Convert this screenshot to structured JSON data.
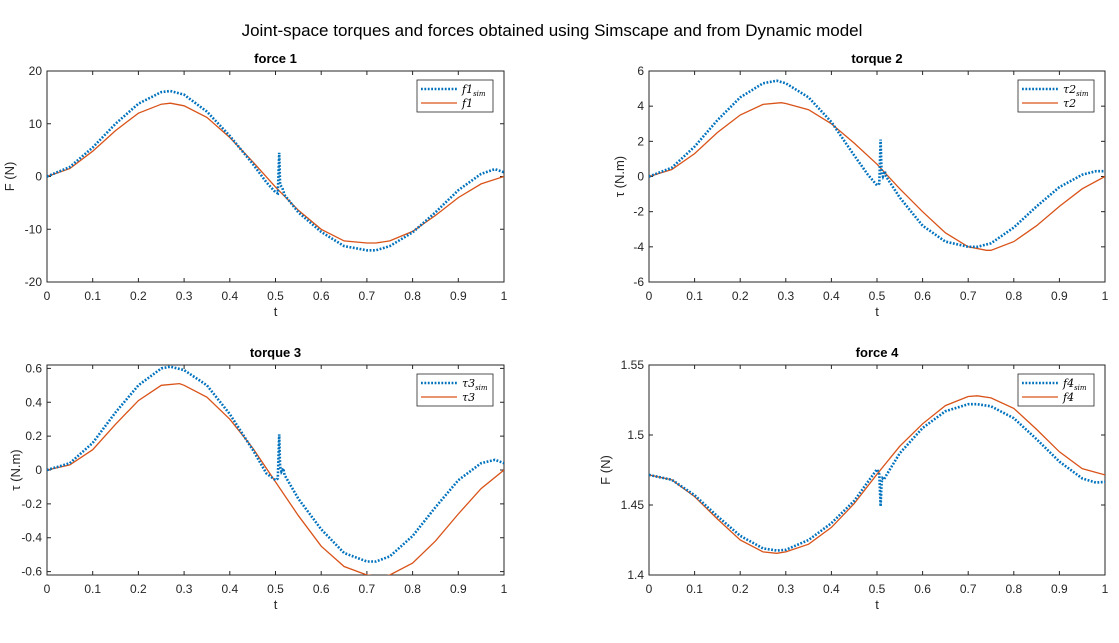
{
  "figure_title": "Joint-space torques and forces obtained using Simscape and from Dynamic model",
  "colors": {
    "sim": "#0072BD",
    "model": "#D95319",
    "axes": "#262626"
  },
  "chart_data": [
    {
      "type": "line",
      "title": "force 1",
      "xlabel": "t",
      "ylabel": "F (N)",
      "xlim": [
        0,
        1
      ],
      "ylim": [
        -20,
        20
      ],
      "xticks": [
        "0",
        "0.1",
        "0.2",
        "0.3",
        "0.4",
        "0.5",
        "0.6",
        "0.7",
        "0.8",
        "0.9",
        "1"
      ],
      "yticks": [
        "-20",
        "-10",
        "0",
        "10",
        "20"
      ],
      "legend": "top-right",
      "grid": false,
      "series": [
        {
          "name": "f1",
          "name_sub": "sim",
          "style": "dotted",
          "x": [
            0,
            0.05,
            0.1,
            0.15,
            0.2,
            0.25,
            0.27,
            0.3,
            0.35,
            0.4,
            0.45,
            0.48,
            0.5,
            0.505,
            0.508,
            0.51,
            0.512,
            0.515,
            0.52,
            0.55,
            0.6,
            0.65,
            0.7,
            0.72,
            0.75,
            0.8,
            0.85,
            0.9,
            0.95,
            0.98,
            1
          ],
          "values": [
            0,
            1.8,
            5.5,
            10,
            13.8,
            16,
            16.2,
            15.5,
            12.3,
            7.7,
            2.4,
            -1.1,
            -3,
            -3.2,
            4.5,
            -1.5,
            -1.8,
            -2.2,
            -3.5,
            -6.8,
            -10.5,
            -13.2,
            -14,
            -14,
            -13.2,
            -10.6,
            -6.8,
            -2.6,
            0.5,
            1.4,
            0.8
          ]
        },
        {
          "name": "f1",
          "name_sub": "",
          "style": "solid",
          "x": [
            0,
            0.05,
            0.1,
            0.15,
            0.2,
            0.25,
            0.27,
            0.3,
            0.35,
            0.4,
            0.45,
            0.5,
            0.55,
            0.6,
            0.65,
            0.7,
            0.72,
            0.75,
            0.8,
            0.85,
            0.9,
            0.95,
            1
          ],
          "values": [
            0,
            1.5,
            4.8,
            8.7,
            12,
            13.7,
            13.9,
            13.4,
            11.2,
            7.4,
            2.8,
            -2,
            -6.4,
            -10,
            -12.2,
            -12.6,
            -12.6,
            -12.2,
            -10.4,
            -7.4,
            -4,
            -1.4,
            0
          ]
        }
      ]
    },
    {
      "type": "line",
      "title": "torque 2",
      "xlabel": "t",
      "ylabel": "τ (N.m)",
      "xlim": [
        0,
        1
      ],
      "ylim": [
        -6,
        6
      ],
      "xticks": [
        "0",
        "0.1",
        "0.2",
        "0.3",
        "0.4",
        "0.5",
        "0.6",
        "0.7",
        "0.8",
        "0.9",
        "1"
      ],
      "yticks": [
        "-6",
        "-4",
        "-2",
        "0",
        "2",
        "4",
        "6"
      ],
      "legend": "top-right",
      "grid": false,
      "series": [
        {
          "name": "τ2",
          "name_sub": "sim",
          "style": "dotted",
          "x": [
            0,
            0.05,
            0.1,
            0.15,
            0.2,
            0.25,
            0.28,
            0.3,
            0.35,
            0.4,
            0.45,
            0.48,
            0.5,
            0.505,
            0.508,
            0.51,
            0.513,
            0.517,
            0.52,
            0.55,
            0.6,
            0.65,
            0.7,
            0.72,
            0.75,
            0.8,
            0.85,
            0.9,
            0.95,
            0.98,
            1
          ],
          "values": [
            0,
            0.5,
            1.7,
            3.2,
            4.5,
            5.3,
            5.45,
            5.3,
            4.5,
            3.1,
            1.2,
            0.1,
            -0.5,
            -0.4,
            2.1,
            0.2,
            0,
            0.3,
            0,
            -1.2,
            -2.8,
            -3.7,
            -4,
            -4,
            -3.8,
            -2.9,
            -1.7,
            -0.6,
            0.1,
            0.3,
            0.3
          ]
        },
        {
          "name": "τ2",
          "name_sub": "",
          "style": "solid",
          "x": [
            0,
            0.05,
            0.1,
            0.15,
            0.2,
            0.25,
            0.29,
            0.3,
            0.35,
            0.4,
            0.45,
            0.5,
            0.55,
            0.6,
            0.65,
            0.7,
            0.74,
            0.75,
            0.8,
            0.85,
            0.9,
            0.95,
            1
          ],
          "values": [
            0,
            0.4,
            1.3,
            2.5,
            3.5,
            4.1,
            4.2,
            4.15,
            3.8,
            3,
            1.9,
            0.7,
            -0.7,
            -2,
            -3.2,
            -4,
            -4.2,
            -4.2,
            -3.7,
            -2.8,
            -1.7,
            -0.7,
            0
          ]
        }
      ]
    },
    {
      "type": "line",
      "title": "torque 3",
      "xlabel": "t",
      "ylabel": "τ (N.m)",
      "xlim": [
        0,
        1
      ],
      "ylim": [
        -0.62,
        0.62
      ],
      "xticks": [
        "0",
        "0.1",
        "0.2",
        "0.3",
        "0.4",
        "0.5",
        "0.6",
        "0.7",
        "0.8",
        "0.9",
        "1"
      ],
      "yticks": [
        "-0.6",
        "-0.4",
        "-0.2",
        "0",
        "0.2",
        "0.4",
        "0.6"
      ],
      "legend": "top-right",
      "grid": false,
      "series": [
        {
          "name": "τ3",
          "name_sub": "sim",
          "style": "dotted",
          "x": [
            0,
            0.05,
            0.1,
            0.15,
            0.2,
            0.25,
            0.27,
            0.3,
            0.35,
            0.4,
            0.45,
            0.48,
            0.5,
            0.505,
            0.508,
            0.51,
            0.513,
            0.517,
            0.52,
            0.55,
            0.6,
            0.65,
            0.7,
            0.72,
            0.75,
            0.8,
            0.85,
            0.9,
            0.95,
            0.98,
            1
          ],
          "values": [
            0,
            0.04,
            0.16,
            0.34,
            0.5,
            0.6,
            0.61,
            0.59,
            0.5,
            0.33,
            0.12,
            -0.02,
            -0.06,
            -0.05,
            0.21,
            0.02,
            -0.01,
            0.01,
            -0.03,
            -0.17,
            -0.35,
            -0.49,
            -0.54,
            -0.54,
            -0.51,
            -0.39,
            -0.22,
            -0.06,
            0.04,
            0.06,
            0.04
          ]
        },
        {
          "name": "τ3",
          "name_sub": "",
          "style": "solid",
          "x": [
            0,
            0.05,
            0.1,
            0.15,
            0.2,
            0.25,
            0.29,
            0.3,
            0.35,
            0.4,
            0.45,
            0.5,
            0.55,
            0.6,
            0.65,
            0.7,
            0.73,
            0.75,
            0.8,
            0.85,
            0.9,
            0.95,
            1
          ],
          "values": [
            0,
            0.03,
            0.12,
            0.27,
            0.41,
            0.5,
            0.51,
            0.5,
            0.43,
            0.3,
            0.13,
            -0.07,
            -0.27,
            -0.45,
            -0.57,
            -0.62,
            -0.63,
            -0.62,
            -0.55,
            -0.42,
            -0.26,
            -0.11,
            0
          ]
        }
      ]
    },
    {
      "type": "line",
      "title": "force 4",
      "xlabel": "t",
      "ylabel": "F (N)",
      "xlim": [
        0,
        1
      ],
      "ylim": [
        1.4,
        1.55
      ],
      "xticks": [
        "0",
        "0.1",
        "0.2",
        "0.3",
        "0.4",
        "0.5",
        "0.6",
        "0.7",
        "0.8",
        "0.9",
        "1"
      ],
      "yticks": [
        "1.4",
        "1.45",
        "1.5",
        "1.55"
      ],
      "legend": "top-right",
      "grid": false,
      "series": [
        {
          "name": "f4",
          "name_sub": "sim",
          "style": "dotted",
          "x": [
            0,
            0.05,
            0.1,
            0.15,
            0.2,
            0.25,
            0.28,
            0.3,
            0.35,
            0.4,
            0.45,
            0.5,
            0.505,
            0.508,
            0.51,
            0.512,
            0.515,
            0.52,
            0.55,
            0.6,
            0.65,
            0.7,
            0.72,
            0.75,
            0.8,
            0.85,
            0.9,
            0.95,
            0.98,
            1
          ],
          "values": [
            1.4715,
            1.468,
            1.457,
            1.442,
            1.428,
            1.419,
            1.4175,
            1.418,
            1.425,
            1.437,
            1.453,
            1.4755,
            1.472,
            1.449,
            1.466,
            1.469,
            1.468,
            1.471,
            1.487,
            1.505,
            1.517,
            1.522,
            1.522,
            1.5205,
            1.512,
            1.497,
            1.481,
            1.469,
            1.466,
            1.4665
          ]
        },
        {
          "name": "f4",
          "name_sub": "",
          "style": "solid",
          "x": [
            0,
            0.05,
            0.1,
            0.15,
            0.2,
            0.25,
            0.28,
            0.3,
            0.35,
            0.4,
            0.45,
            0.5,
            0.55,
            0.6,
            0.65,
            0.7,
            0.72,
            0.75,
            0.8,
            0.85,
            0.9,
            0.95,
            1
          ],
          "values": [
            1.4715,
            1.468,
            1.456,
            1.44,
            1.425,
            1.4165,
            1.4155,
            1.4165,
            1.422,
            1.434,
            1.451,
            1.472,
            1.492,
            1.508,
            1.521,
            1.5275,
            1.528,
            1.5265,
            1.519,
            1.504,
            1.488,
            1.476,
            1.4715
          ]
        }
      ]
    }
  ]
}
